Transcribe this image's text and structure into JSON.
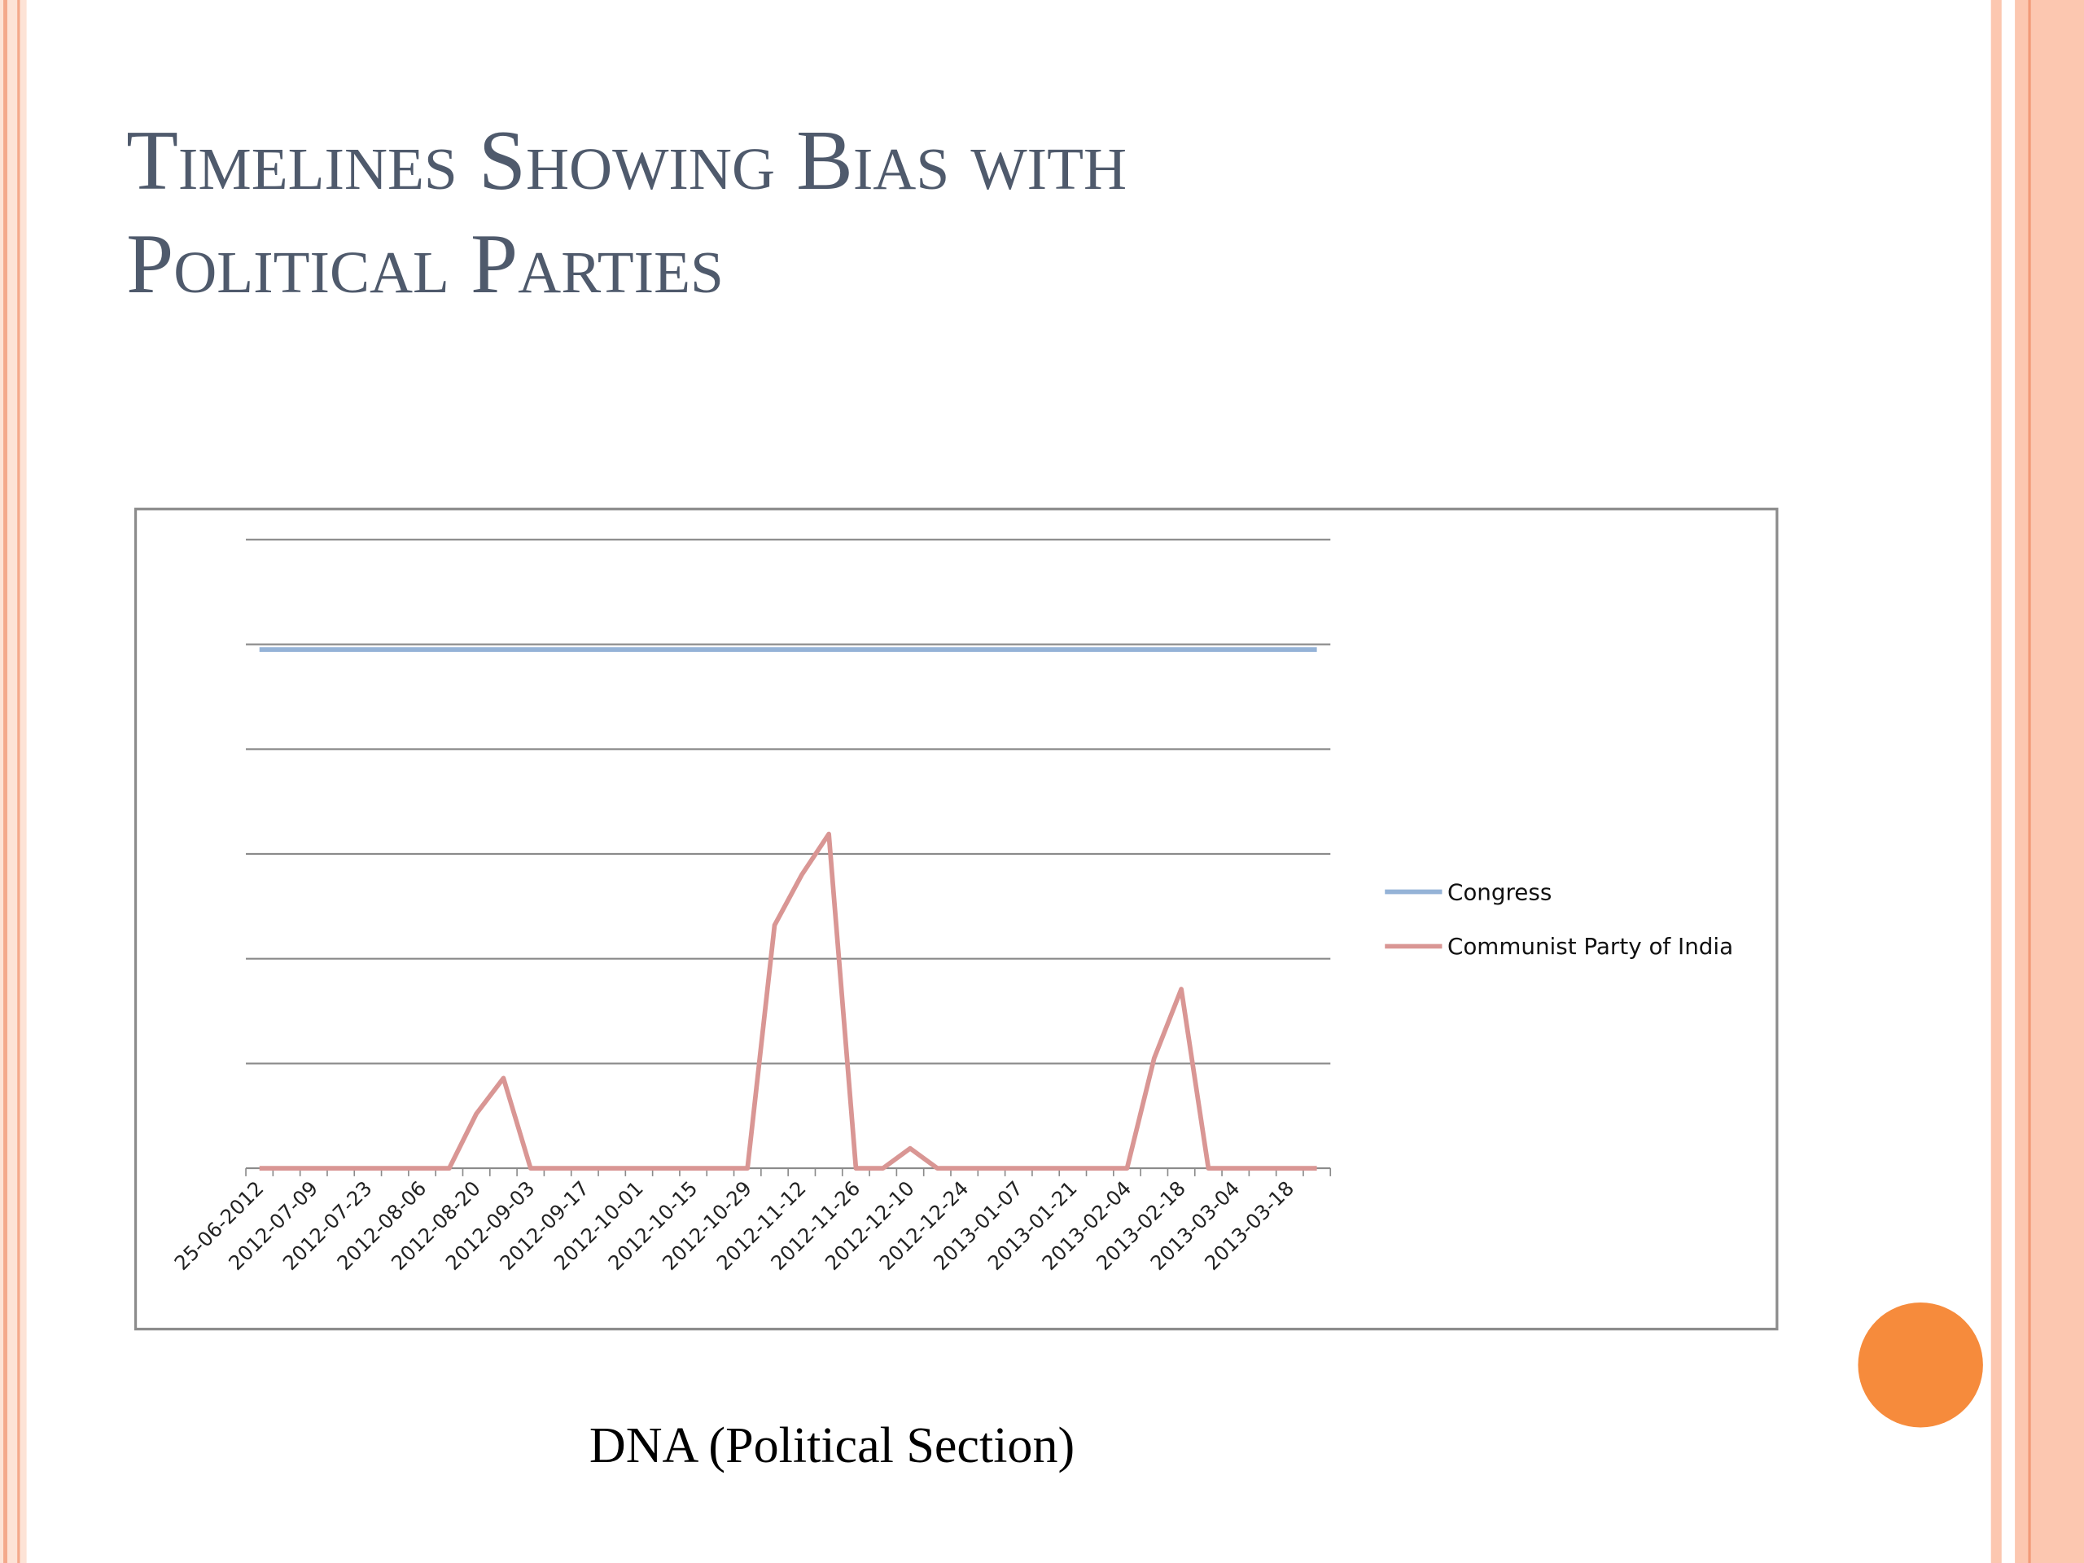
{
  "slide": {
    "title": "Timelines Showing Bias with Political Parties",
    "caption": "DNA (Political Section)"
  },
  "chart_data": {
    "type": "line",
    "categories": [
      "25-06-2012",
      null,
      "2012-07-09",
      null,
      "2012-07-23",
      null,
      "2012-08-06",
      null,
      "2012-08-20",
      null,
      "2012-09-03",
      null,
      "2012-09-17",
      null,
      "2012-10-01",
      null,
      "2012-10-15",
      null,
      "2012-10-29",
      null,
      "2012-11-12",
      null,
      "2012-11-26",
      null,
      "2012-12-10",
      null,
      "2012-12-24",
      null,
      "2013-01-07",
      null,
      "2013-01-21",
      null,
      "2013-02-04",
      null,
      "2013-02-18",
      null,
      "2013-03-04",
      null,
      "2013-03-18",
      null
    ],
    "series": [
      {
        "name": "Congress",
        "color": "#95b3d7",
        "values": [
          4.95,
          4.95,
          4.95,
          4.95,
          4.95,
          4.95,
          4.95,
          4.95,
          4.95,
          4.95,
          4.95,
          4.95,
          4.95,
          4.95,
          4.95,
          4.95,
          4.95,
          4.95,
          4.95,
          4.95,
          4.95,
          4.95,
          4.95,
          4.95,
          4.95,
          4.95,
          4.95,
          4.95,
          4.95,
          4.95,
          4.95,
          4.95,
          4.95,
          4.95,
          4.95,
          4.95,
          4.95,
          4.95,
          4.95,
          4.95
        ]
      },
      {
        "name": "Communist Party of India",
        "color": "#d99694",
        "values": [
          0,
          0,
          0,
          0,
          0,
          0,
          0,
          0,
          0.52,
          0.86,
          0,
          0,
          0,
          0,
          0,
          0,
          0,
          0,
          0,
          2.32,
          2.8,
          3.19,
          0,
          0,
          0.19,
          0,
          0,
          0,
          0,
          0,
          0,
          0,
          0,
          1.05,
          1.71,
          0,
          0,
          0,
          0,
          0
        ]
      }
    ],
    "ylim": [
      0,
      6
    ],
    "yticks": [
      0,
      1,
      2,
      3,
      4,
      5,
      6
    ],
    "grid": true,
    "legend": "right"
  }
}
